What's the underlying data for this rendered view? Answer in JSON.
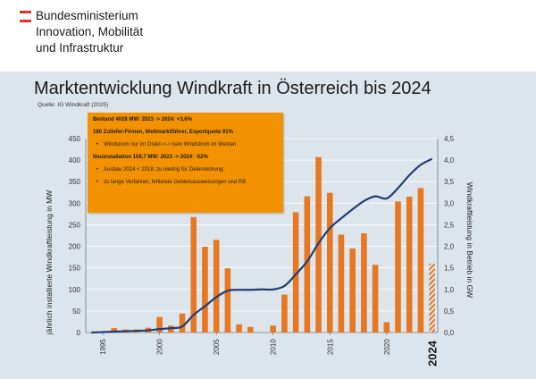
{
  "header": {
    "ministry_lines": [
      "Bundesministerium",
      "Innovation, Mobilität",
      "und Infrastruktur"
    ]
  },
  "title": "Marktentwicklung Windkraft in Österreich bis 2024",
  "source": "Quelle: IG Windkraft (2025)",
  "note": {
    "line1": "Bestand 4028 MW: 2023 -> 2024: +3,6%",
    "line2": "180 Zuliefer-Firmen, Weltmarktführer, Exportquote 91%",
    "bullet1": "Windstrom nur im Osten <-> kein Windstrom im Westen",
    "line3": "Neuinstallation 159,7 MW: 2023 -> 2024: -52%",
    "bullet2": "Ausbau 2024 < 2018: zu niedrig für Zielerreichung;",
    "bullet3": "zu lange Verfahren, fehlende Gebietsausweisungen und RB"
  },
  "colors": {
    "bar": "#e87722",
    "line": "#1f3f73",
    "panel": "#dde5ec",
    "note": "#f39200",
    "accent_red": "#e4322b"
  },
  "chart_data": {
    "type": "bar",
    "x": [
      1994,
      1995,
      1996,
      1997,
      1998,
      1999,
      2000,
      2001,
      2002,
      2003,
      2004,
      2005,
      2006,
      2007,
      2008,
      2009,
      2010,
      2011,
      2012,
      2013,
      2014,
      2015,
      2016,
      2017,
      2018,
      2019,
      2020,
      2021,
      2022,
      2023,
      2024
    ],
    "series": [
      {
        "axis": "left",
        "mark": "bar",
        "values": [
          0,
          2,
          10,
          7,
          7,
          11,
          36,
          16,
          44,
          268,
          199,
          215,
          149,
          19,
          13,
          0,
          16,
          88,
          279,
          316,
          407,
          324,
          227,
          195,
          230,
          157,
          24,
          304,
          315,
          335,
          160
        ],
        "hatched_x": [
          2024
        ]
      },
      {
        "axis": "right",
        "mark": "line",
        "values": [
          0.0,
          0.01,
          0.02,
          0.03,
          0.04,
          0.05,
          0.08,
          0.1,
          0.14,
          0.41,
          0.61,
          0.82,
          0.97,
          0.99,
          0.99,
          1.0,
          1.0,
          1.08,
          1.35,
          1.65,
          2.07,
          2.42,
          2.65,
          2.86,
          3.05,
          3.16,
          3.11,
          3.35,
          3.65,
          3.89,
          4.03
        ]
      }
    ],
    "xticks": [
      1995,
      2000,
      2005,
      2010,
      2015,
      2020
    ],
    "xtick_highlight": 2024,
    "ylabel_left": "jährlich installierte Windkraftleistung in MW",
    "ylabel_right": "Windkraftleistung in Betrieb in GW",
    "ylim_left": [
      0,
      450
    ],
    "ylim_right": [
      0,
      4.5
    ],
    "yticks_left": [
      "0",
      "50",
      "100",
      "150",
      "200",
      "250",
      "300",
      "350",
      "400",
      "450"
    ],
    "yticks_right": [
      "0,0",
      "0,5",
      "1,0",
      "1,5",
      "2,0",
      "2,5",
      "3,0",
      "3,5",
      "4,0",
      "4,5"
    ],
    "grid": true,
    "legend": "none"
  }
}
